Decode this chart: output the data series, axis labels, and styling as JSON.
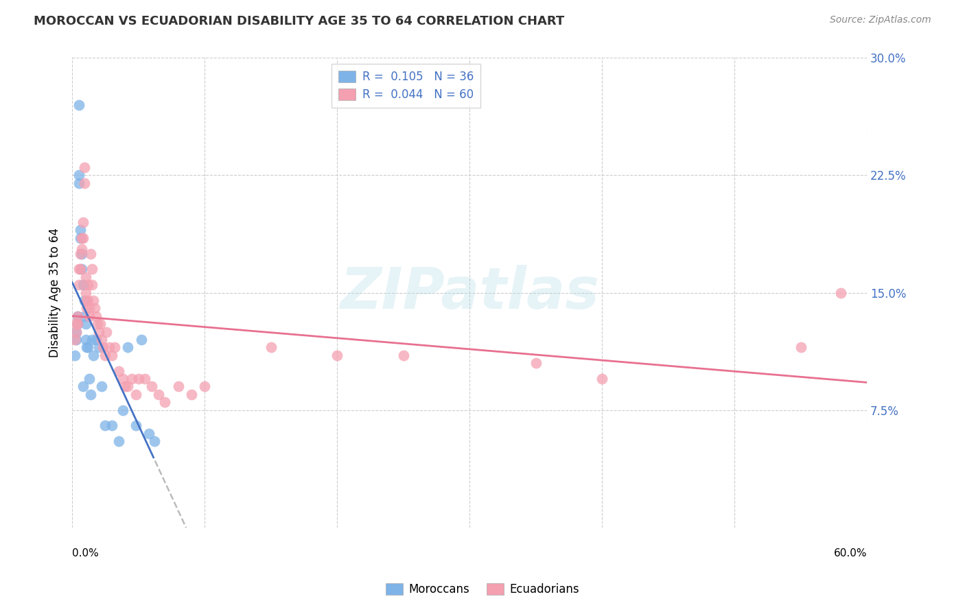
{
  "title": "MOROCCAN VS ECUADORIAN DISABILITY AGE 35 TO 64 CORRELATION CHART",
  "source": "Source: ZipAtlas.com",
  "ylabel": "Disability Age 35 to 64",
  "legend_label1": "Moroccans",
  "legend_label2": "Ecuadorians",
  "r1": 0.105,
  "n1": 36,
  "r2": 0.044,
  "n2": 60,
  "xmin": 0.0,
  "xmax": 0.6,
  "ymin": 0.0,
  "ymax": 0.3,
  "yticks": [
    0.075,
    0.15,
    0.225,
    0.3
  ],
  "ytick_labels": [
    "7.5%",
    "15.0%",
    "22.5%",
    "30.0%"
  ],
  "color_moroccan": "#7EB3E8",
  "color_ecuadorian": "#F4A0B0",
  "color_line_moroccan": "#4472C4",
  "color_line_ecuadorian": "#E87090",
  "moroccan_x": [
    0.002,
    0.003,
    0.003,
    0.004,
    0.004,
    0.005,
    0.005,
    0.005,
    0.006,
    0.006,
    0.007,
    0.007,
    0.008,
    0.008,
    0.009,
    0.009,
    0.01,
    0.01,
    0.011,
    0.012,
    0.013,
    0.014,
    0.015,
    0.016,
    0.018,
    0.02,
    0.022,
    0.025,
    0.03,
    0.035,
    0.038,
    0.042,
    0.048,
    0.052,
    0.058,
    0.062
  ],
  "moroccan_y": [
    0.11,
    0.125,
    0.12,
    0.135,
    0.13,
    0.27,
    0.225,
    0.22,
    0.19,
    0.185,
    0.175,
    0.165,
    0.155,
    0.09,
    0.145,
    0.135,
    0.13,
    0.12,
    0.115,
    0.115,
    0.095,
    0.085,
    0.12,
    0.11,
    0.12,
    0.115,
    0.09,
    0.065,
    0.065,
    0.055,
    0.075,
    0.115,
    0.065,
    0.12,
    0.06,
    0.055
  ],
  "ecuadorian_x": [
    0.002,
    0.003,
    0.003,
    0.004,
    0.004,
    0.005,
    0.005,
    0.006,
    0.006,
    0.007,
    0.007,
    0.008,
    0.008,
    0.009,
    0.009,
    0.01,
    0.01,
    0.011,
    0.011,
    0.012,
    0.012,
    0.013,
    0.013,
    0.014,
    0.015,
    0.015,
    0.016,
    0.017,
    0.018,
    0.019,
    0.02,
    0.021,
    0.022,
    0.023,
    0.025,
    0.026,
    0.028,
    0.03,
    0.032,
    0.035,
    0.038,
    0.04,
    0.042,
    0.045,
    0.048,
    0.05,
    0.055,
    0.06,
    0.065,
    0.07,
    0.08,
    0.09,
    0.1,
    0.15,
    0.2,
    0.25,
    0.35,
    0.4,
    0.55,
    0.58
  ],
  "ecuadorian_y": [
    0.12,
    0.13,
    0.125,
    0.135,
    0.13,
    0.165,
    0.155,
    0.175,
    0.165,
    0.185,
    0.178,
    0.195,
    0.185,
    0.23,
    0.22,
    0.16,
    0.15,
    0.145,
    0.14,
    0.155,
    0.145,
    0.14,
    0.135,
    0.175,
    0.165,
    0.155,
    0.145,
    0.14,
    0.135,
    0.13,
    0.125,
    0.13,
    0.12,
    0.115,
    0.11,
    0.125,
    0.115,
    0.11,
    0.115,
    0.1,
    0.095,
    0.09,
    0.09,
    0.095,
    0.085,
    0.095,
    0.095,
    0.09,
    0.085,
    0.08,
    0.09,
    0.085,
    0.09,
    0.115,
    0.11,
    0.11,
    0.105,
    0.095,
    0.115,
    0.15
  ]
}
